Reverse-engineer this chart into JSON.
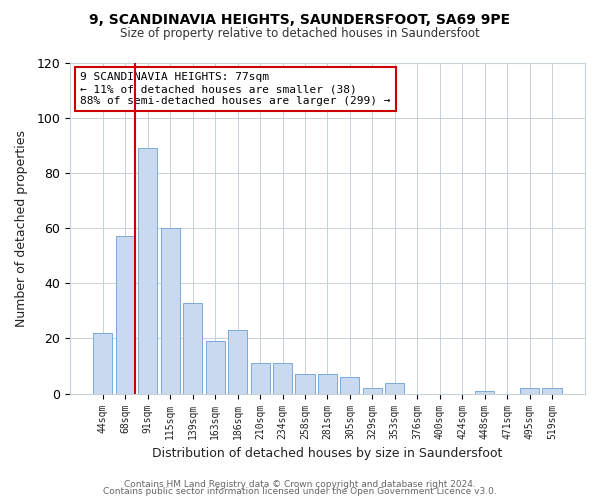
{
  "title": "9, SCANDINAVIA HEIGHTS, SAUNDERSFOOT, SA69 9PE",
  "subtitle": "Size of property relative to detached houses in Saundersfoot",
  "xlabel": "Distribution of detached houses by size in Saundersfoot",
  "ylabel": "Number of detached properties",
  "footer_line1": "Contains HM Land Registry data © Crown copyright and database right 2024.",
  "footer_line2": "Contains public sector information licensed under the Open Government Licence v3.0.",
  "bar_labels": [
    "44sqm",
    "68sqm",
    "91sqm",
    "115sqm",
    "139sqm",
    "163sqm",
    "186sqm",
    "210sqm",
    "234sqm",
    "258sqm",
    "281sqm",
    "305sqm",
    "329sqm",
    "353sqm",
    "376sqm",
    "400sqm",
    "424sqm",
    "448sqm",
    "471sqm",
    "495sqm",
    "519sqm"
  ],
  "bar_values": [
    22,
    57,
    89,
    60,
    33,
    19,
    23,
    11,
    11,
    7,
    7,
    6,
    2,
    4,
    0,
    0,
    0,
    1,
    0,
    2,
    2
  ],
  "bar_color": "#c9d9f0",
  "bar_edge_color": "#7aabdb",
  "ylim": [
    0,
    120
  ],
  "yticks": [
    0,
    20,
    40,
    60,
    80,
    100,
    120
  ],
  "reference_line_color": "#cc0000",
  "annotation_title": "9 SCANDINAVIA HEIGHTS: 77sqm",
  "annotation_line1": "← 11% of detached houses are smaller (38)",
  "annotation_line2": "88% of semi-detached houses are larger (299) →",
  "annotation_box_color": "#ffffff",
  "annotation_box_edge_color": "#cc0000",
  "background_color": "#ffffff",
  "grid_color": "#c8d0d8"
}
